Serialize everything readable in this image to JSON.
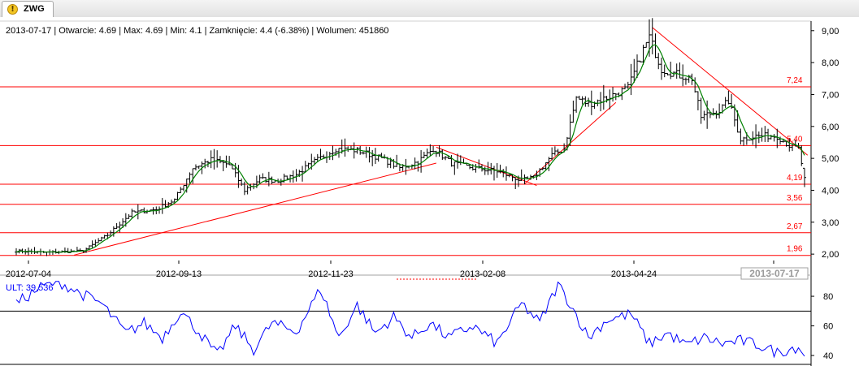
{
  "window": {
    "tab_label": "ZWG",
    "tab_icon": "warning-icon"
  },
  "info_bar": "2013-07-17 | Otwarcie: 4.69 | Max: 4.69 | Min: 4.1 | Zamknięcie: 4.4 (-6.38%)  | Wolumen: 451860",
  "indicator_label": "ULT: 39.536",
  "colors": {
    "price": "#000000",
    "ma": "#008000",
    "lines": "#ff0000",
    "indicator": "#0000ff",
    "ref_line": "#000000",
    "level_text": "#ff0000"
  },
  "chart_data": [
    {
      "type": "ohlc",
      "ylim": [
        1.8,
        9.3
      ],
      "yticks": [
        "2,00",
        "3,00",
        "4,00",
        "5,00",
        "6,00",
        "7,00",
        "8,00",
        "9,00"
      ],
      "ytick_values": [
        2,
        3,
        4,
        5,
        6,
        7,
        8,
        9
      ],
      "xticks": [
        "2012-07-04",
        "2012-09-13",
        "2012-11-23",
        "2013-02-08",
        "2013-04-24",
        "2013-07-17"
      ],
      "bar_count": 260,
      "horizontal_levels": [
        {
          "label": "7,24",
          "value": 7.24
        },
        {
          "label": "5,40",
          "value": 5.4
        },
        {
          "label": "4,19",
          "value": 4.19
        },
        {
          "label": "3,56",
          "value": 3.56
        },
        {
          "label": "2,67",
          "value": 2.67
        },
        {
          "label": "1,96",
          "value": 1.96
        }
      ],
      "trendlines": [
        {
          "from": [
            19,
            1.97
          ],
          "to": [
            138,
            4.85
          ]
        },
        {
          "from": [
            138,
            5.35
          ],
          "to": [
            171,
            4.15
          ]
        },
        {
          "from": [
            167,
            4.2
          ],
          "to": [
            197,
            6.75
          ]
        },
        {
          "from": [
            209,
            9.1
          ],
          "to": [
            260,
            5.1
          ]
        }
      ],
      "close_anchors": [
        [
          0,
          2.1
        ],
        [
          10,
          2.05
        ],
        [
          22,
          2.1
        ],
        [
          30,
          2.6
        ],
        [
          38,
          3.3
        ],
        [
          46,
          3.4
        ],
        [
          52,
          3.7
        ],
        [
          58,
          4.7
        ],
        [
          64,
          4.95
        ],
        [
          70,
          4.8
        ],
        [
          75,
          4.0
        ],
        [
          80,
          4.35
        ],
        [
          86,
          4.3
        ],
        [
          92,
          4.5
        ],
        [
          98,
          4.9
        ],
        [
          105,
          5.3
        ],
        [
          112,
          5.25
        ],
        [
          120,
          5.0
        ],
        [
          126,
          4.7
        ],
        [
          132,
          4.9
        ],
        [
          137,
          5.3
        ],
        [
          143,
          4.85
        ],
        [
          150,
          4.7
        ],
        [
          158,
          4.6
        ],
        [
          166,
          4.3
        ],
        [
          170,
          4.4
        ],
        [
          176,
          5.1
        ],
        [
          180,
          5.3
        ],
        [
          184,
          6.9
        ],
        [
          188,
          6.7
        ],
        [
          194,
          6.9
        ],
        [
          201,
          7.2
        ],
        [
          206,
          8.4
        ],
        [
          208,
          8.8
        ],
        [
          212,
          7.8
        ],
        [
          218,
          7.6
        ],
        [
          222,
          7.5
        ],
        [
          225,
          6.3
        ],
        [
          231,
          6.5
        ],
        [
          234,
          6.8
        ],
        [
          238,
          5.6
        ],
        [
          243,
          5.7
        ],
        [
          250,
          5.7
        ],
        [
          254,
          5.4
        ],
        [
          257,
          5.3
        ],
        [
          259,
          4.4
        ]
      ],
      "last_bar": {
        "open": 4.69,
        "high": 4.69,
        "low": 4.1,
        "close": 4.4
      }
    },
    {
      "type": "line",
      "name": "ULT",
      "ylim": [
        34,
        91
      ],
      "yticks": [
        "40",
        "60",
        "80"
      ],
      "ytick_values": [
        40,
        60,
        80
      ],
      "ref_level": 70,
      "last_value": 39.536,
      "anchors": [
        [
          0,
          75
        ],
        [
          8,
          86
        ],
        [
          14,
          90
        ],
        [
          20,
          83
        ],
        [
          28,
          75
        ],
        [
          36,
          55
        ],
        [
          42,
          62
        ],
        [
          48,
          52
        ],
        [
          54,
          70
        ],
        [
          60,
          56
        ],
        [
          66,
          40
        ],
        [
          72,
          60
        ],
        [
          78,
          44
        ],
        [
          84,
          62
        ],
        [
          92,
          56
        ],
        [
          100,
          85
        ],
        [
          106,
          52
        ],
        [
          112,
          74
        ],
        [
          118,
          55
        ],
        [
          124,
          66
        ],
        [
          130,
          52
        ],
        [
          136,
          62
        ],
        [
          142,
          52
        ],
        [
          150,
          60
        ],
        [
          158,
          48
        ],
        [
          166,
          75
        ],
        [
          172,
          62
        ],
        [
          178,
          88
        ],
        [
          182,
          75
        ],
        [
          188,
          52
        ],
        [
          194,
          64
        ],
        [
          202,
          68
        ],
        [
          208,
          48
        ],
        [
          214,
          55
        ],
        [
          220,
          47
        ],
        [
          226,
          52
        ],
        [
          232,
          48
        ],
        [
          238,
          50
        ],
        [
          244,
          47
        ],
        [
          250,
          42
        ],
        [
          255,
          45
        ],
        [
          257,
          46
        ],
        [
          259,
          39.5
        ]
      ]
    }
  ]
}
